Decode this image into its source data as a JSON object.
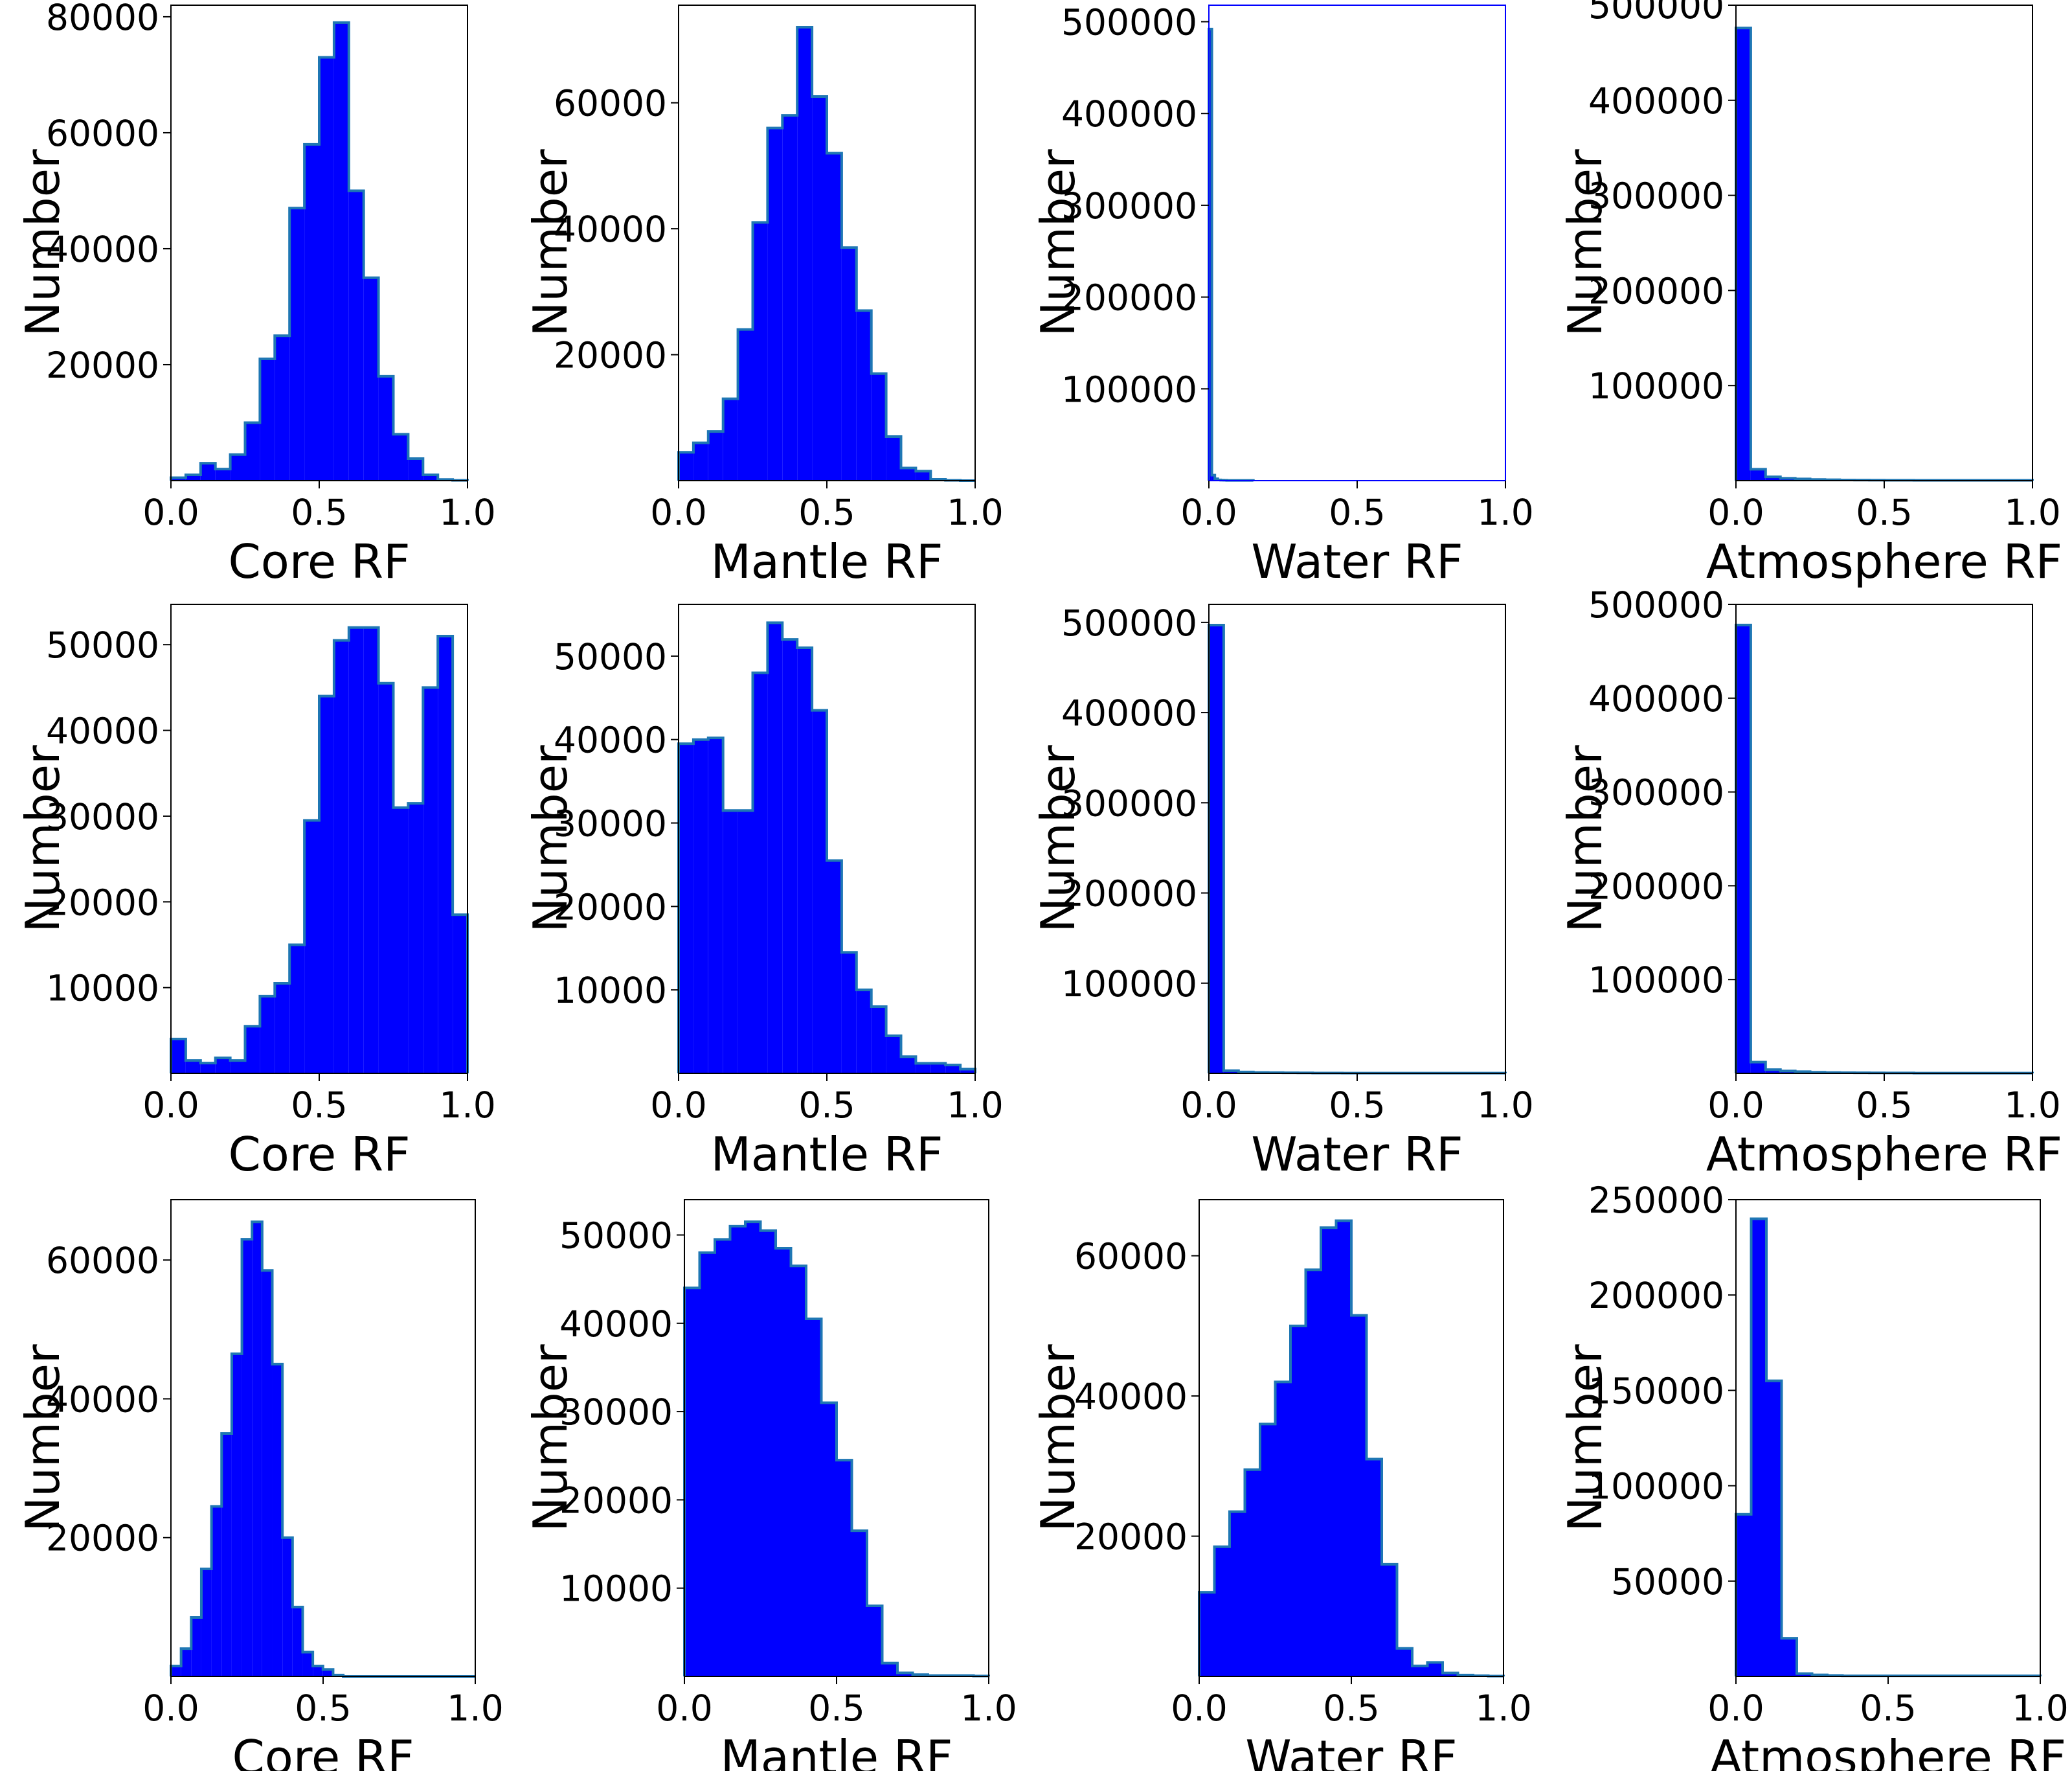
{
  "colors": {
    "bar_fill": "#0000ff",
    "bar_edge": "#1f77b4",
    "axes": "#000000",
    "highlight_axes": "#0000ff"
  },
  "chart_data": [
    {
      "type": "histogram",
      "xlabel": "Core RF",
      "ylabel": "Number",
      "xlim": [
        0,
        1
      ],
      "ylim": [
        0,
        82000
      ],
      "xticks": [
        "0.0",
        "0.5",
        "1.0"
      ],
      "yticks": [
        20000,
        40000,
        60000,
        80000
      ],
      "bin_width": 0.05,
      "values": [
        500,
        1000,
        3000,
        2000,
        4500,
        10000,
        21000,
        25000,
        47000,
        58000,
        73000,
        79000,
        50000,
        35000,
        18000,
        8000,
        3800,
        1000,
        200,
        50
      ]
    },
    {
      "type": "histogram",
      "xlabel": "Mantle RF",
      "ylabel": "Number",
      "xlim": [
        0,
        1
      ],
      "ylim": [
        0,
        75500
      ],
      "xticks": [
        "0.0",
        "0.5",
        "1.0"
      ],
      "yticks": [
        20000,
        40000,
        60000
      ],
      "bin_width": 0.05,
      "values": [
        4500,
        6000,
        7800,
        13000,
        24000,
        41000,
        56000,
        58000,
        72000,
        61000,
        52000,
        37000,
        27000,
        17000,
        7000,
        2000,
        1500,
        200,
        50,
        0
      ]
    },
    {
      "type": "histogram",
      "xlabel": "Water RF",
      "ylabel": "Number",
      "xlim": [
        0,
        1
      ],
      "ylim": [
        0,
        518000
      ],
      "xticks": [
        "0.0",
        "0.5",
        "1.0"
      ],
      "yticks": [
        100000,
        200000,
        300000,
        400000,
        500000
      ],
      "bin_width": 0.01,
      "highlight_frame": true,
      "values": [
        492000,
        6000,
        2000,
        800,
        500,
        400,
        300,
        300,
        300,
        300,
        300,
        300,
        300,
        300,
        300
      ]
    },
    {
      "type": "histogram",
      "xlabel": "Atmosphere RF",
      "ylabel": "Number",
      "xlim": [
        0,
        1
      ],
      "ylim": [
        0,
        500000
      ],
      "xticks": [
        "0.0",
        "0.5",
        "1.0"
      ],
      "yticks": [
        100000,
        200000,
        300000,
        400000,
        500000
      ],
      "bin_width": 0.05,
      "values": [
        476000,
        12000,
        4000,
        2500,
        1800,
        1200,
        900,
        700,
        600,
        500,
        400,
        400,
        300,
        300,
        300,
        300,
        300,
        300,
        300,
        300
      ]
    },
    {
      "type": "histogram",
      "xlabel": "Core RF",
      "ylabel": "Number",
      "xlim": [
        0,
        1
      ],
      "ylim": [
        0,
        54700
      ],
      "xticks": [
        "0.0",
        "0.5",
        "1.0"
      ],
      "yticks": [
        10000,
        20000,
        30000,
        40000,
        50000
      ],
      "bin_width": 0.05,
      "values": [
        4000,
        1500,
        1200,
        1800,
        1500,
        5500,
        9000,
        10500,
        15000,
        29500,
        44000,
        50500,
        52000,
        52000,
        45500,
        31000,
        31500,
        45000,
        51000,
        18500
      ]
    },
    {
      "type": "histogram",
      "xlabel": "Mantle RF",
      "ylabel": "Number",
      "xlim": [
        0,
        1
      ],
      "ylim": [
        0,
        56200
      ],
      "xticks": [
        "0.0",
        "0.5",
        "1.0"
      ],
      "yticks": [
        10000,
        20000,
        30000,
        40000,
        50000
      ],
      "bin_width": 0.05,
      "values": [
        39500,
        40000,
        40200,
        31500,
        31500,
        48000,
        54000,
        52000,
        51000,
        43500,
        25500,
        14500,
        10000,
        8000,
        4500,
        2000,
        1200,
        1200,
        1000,
        500
      ]
    },
    {
      "type": "histogram",
      "xlabel": "Water RF",
      "ylabel": "Number",
      "xlim": [
        0,
        1
      ],
      "ylim": [
        0,
        520000
      ],
      "xticks": [
        "0.0",
        "0.5",
        "1.0"
      ],
      "yticks": [
        100000,
        200000,
        300000,
        400000,
        500000
      ],
      "bin_width": 0.05,
      "values": [
        497000,
        3000,
        1500,
        1000,
        800,
        600,
        500,
        400,
        400,
        300,
        300,
        300,
        300,
        300,
        300,
        300,
        300,
        300,
        300,
        300
      ]
    },
    {
      "type": "histogram",
      "xlabel": "Atmosphere RF",
      "ylabel": "Number",
      "xlim": [
        0,
        1
      ],
      "ylim": [
        0,
        500000
      ],
      "xticks": [
        "0.0",
        "0.5",
        "1.0"
      ],
      "yticks": [
        100000,
        200000,
        300000,
        400000,
        500000
      ],
      "bin_width": 0.05,
      "values": [
        478000,
        12000,
        4000,
        2500,
        1800,
        1200,
        900,
        700,
        600,
        500,
        400,
        400,
        300,
        300,
        300,
        300,
        300,
        300,
        300,
        300
      ]
    },
    {
      "type": "histogram",
      "xlabel": "Core RF",
      "ylabel": "Number",
      "xlim": [
        0,
        1
      ],
      "ylim": [
        0,
        68700
      ],
      "xticks": [
        "0.0",
        "0.5",
        "1.0"
      ],
      "yticks": [
        20000,
        40000,
        60000
      ],
      "bin_width": 0.0333,
      "values": [
        1500,
        4000,
        8500,
        15500,
        24500,
        35000,
        46500,
        63000,
        65500,
        58500,
        45000,
        20000,
        10000,
        3500,
        1500,
        1000,
        200,
        0,
        0,
        0,
        0,
        0,
        0,
        0,
        0,
        0,
        0,
        0,
        0,
        0
      ]
    },
    {
      "type": "histogram",
      "xlabel": "Mantle RF",
      "ylabel": "Number",
      "xlim": [
        0,
        1
      ],
      "ylim": [
        0,
        54000
      ],
      "xticks": [
        "0.0",
        "0.5",
        "1.0"
      ],
      "yticks": [
        10000,
        20000,
        30000,
        40000,
        50000
      ],
      "bin_width": 0.05,
      "values": [
        44000,
        48000,
        49500,
        51000,
        51500,
        50500,
        48500,
        46500,
        40500,
        31000,
        24500,
        16500,
        8000,
        1500,
        400,
        200,
        100,
        100,
        100,
        50
      ]
    },
    {
      "type": "histogram",
      "xlabel": "Water RF",
      "ylabel": "Number",
      "xlim": [
        0,
        1
      ],
      "ylim": [
        0,
        68000
      ],
      "xticks": [
        "0.0",
        "0.5",
        "1.0"
      ],
      "yticks": [
        20000,
        40000,
        60000
      ],
      "bin_width": 0.05,
      "values": [
        12000,
        18500,
        23500,
        29500,
        36000,
        42000,
        50000,
        58000,
        64000,
        65000,
        51500,
        31000,
        16000,
        4000,
        1500,
        2000,
        500,
        200,
        100,
        50
      ]
    },
    {
      "type": "histogram",
      "xlabel": "Atmosphere RF",
      "ylabel": "Number",
      "xlim": [
        0,
        1
      ],
      "ylim": [
        0,
        250000
      ],
      "xticks": [
        "0.0",
        "0.5",
        "1.0"
      ],
      "yticks": [
        50000,
        100000,
        150000,
        200000,
        250000
      ],
      "bin_width": 0.05,
      "values": [
        85000,
        240000,
        155000,
        20000,
        1500,
        800,
        500,
        300,
        300,
        300,
        300,
        300,
        300,
        300,
        300,
        300,
        300,
        300,
        300,
        300
      ]
    }
  ]
}
